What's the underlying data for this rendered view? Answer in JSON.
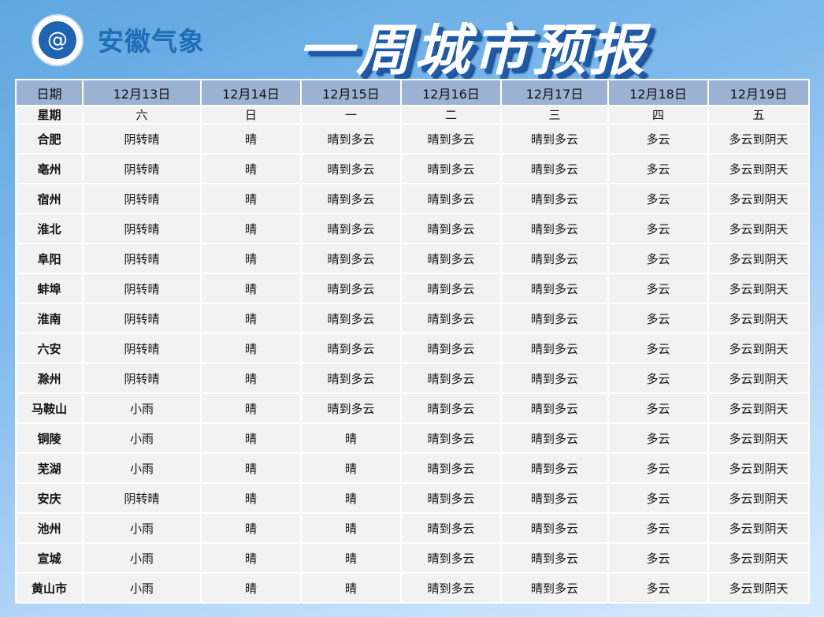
{
  "brand": {
    "name": "安徽气象",
    "logo_icon": "cloud-emblem-icon"
  },
  "title": "一周城市预报",
  "table": {
    "header_label": "日期",
    "dates": [
      "12月13日",
      "12月14日",
      "12月15日",
      "12月16日",
      "12月17日",
      "12月18日",
      "12月19日"
    ],
    "weekday_label": "星期",
    "weekdays": [
      "六",
      "日",
      "一",
      "二",
      "三",
      "四",
      "五"
    ],
    "rows": [
      {
        "city": "合肥",
        "f": [
          "阴转晴",
          "晴",
          "晴到多云",
          "晴到多云",
          "晴到多云",
          "多云",
          "多云到阴天"
        ]
      },
      {
        "city": "亳州",
        "f": [
          "阴转晴",
          "晴",
          "晴到多云",
          "晴到多云",
          "晴到多云",
          "多云",
          "多云到阴天"
        ]
      },
      {
        "city": "宿州",
        "f": [
          "阴转晴",
          "晴",
          "晴到多云",
          "晴到多云",
          "晴到多云",
          "多云",
          "多云到阴天"
        ]
      },
      {
        "city": "淮北",
        "f": [
          "阴转晴",
          "晴",
          "晴到多云",
          "晴到多云",
          "晴到多云",
          "多云",
          "多云到阴天"
        ]
      },
      {
        "city": "阜阳",
        "f": [
          "阴转晴",
          "晴",
          "晴到多云",
          "晴到多云",
          "晴到多云",
          "多云",
          "多云到阴天"
        ]
      },
      {
        "city": "蚌埠",
        "f": [
          "阴转晴",
          "晴",
          "晴到多云",
          "晴到多云",
          "晴到多云",
          "多云",
          "多云到阴天"
        ]
      },
      {
        "city": "淮南",
        "f": [
          "阴转晴",
          "晴",
          "晴到多云",
          "晴到多云",
          "晴到多云",
          "多云",
          "多云到阴天"
        ]
      },
      {
        "city": "六安",
        "f": [
          "阴转晴",
          "晴",
          "晴到多云",
          "晴到多云",
          "晴到多云",
          "多云",
          "多云到阴天"
        ]
      },
      {
        "city": "滁州",
        "f": [
          "阴转晴",
          "晴",
          "晴到多云",
          "晴到多云",
          "晴到多云",
          "多云",
          "多云到阴天"
        ]
      },
      {
        "city": "马鞍山",
        "f": [
          "小雨",
          "晴",
          "晴到多云",
          "晴到多云",
          "晴到多云",
          "多云",
          "多云到阴天"
        ]
      },
      {
        "city": "铜陵",
        "f": [
          "小雨",
          "晴",
          "晴",
          "晴到多云",
          "晴到多云",
          "多云",
          "多云到阴天"
        ]
      },
      {
        "city": "芜湖",
        "f": [
          "小雨",
          "晴",
          "晴",
          "晴到多云",
          "晴到多云",
          "多云",
          "多云到阴天"
        ]
      },
      {
        "city": "安庆",
        "f": [
          "阴转晴",
          "晴",
          "晴",
          "晴到多云",
          "晴到多云",
          "多云",
          "多云到阴天"
        ]
      },
      {
        "city": "池州",
        "f": [
          "小雨",
          "晴",
          "晴",
          "晴到多云",
          "晴到多云",
          "多云",
          "多云到阴天"
        ]
      },
      {
        "city": "宣城",
        "f": [
          "小雨",
          "晴",
          "晴",
          "晴到多云",
          "晴到多云",
          "多云",
          "多云到阴天"
        ]
      },
      {
        "city": "黄山市",
        "f": [
          "小雨",
          "晴",
          "晴",
          "晴到多云",
          "晴到多云",
          "多云",
          "多云到阴天"
        ]
      }
    ]
  }
}
